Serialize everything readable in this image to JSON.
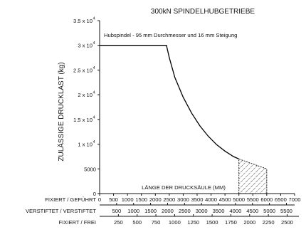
{
  "chart_data": {
    "type": "line",
    "title": "300kN SPINDELHUBGETRIEBE",
    "ylabel": "ZULÄSSIGE DRUCKLAST (kg)",
    "xlabel": "LÄNGE DER DRUCKSÄULE (MM)",
    "annotation": "Hubspindel - 95 mm Durchmesser und 16 mm Steigung",
    "ylim": [
      0,
      35000
    ],
    "xlim": [
      0,
      7000
    ],
    "y_ticks": [
      {
        "value": 0,
        "label": "0"
      },
      {
        "value": 5000,
        "label": "5000"
      },
      {
        "value": 10000,
        "label": "1 x 10",
        "exp": "4"
      },
      {
        "value": 15000,
        "label": "1.5 x 10",
        "exp": "4"
      },
      {
        "value": 20000,
        "label": "2 x 10",
        "exp": "4"
      },
      {
        "value": 25000,
        "label": "2.5 x 10",
        "exp": "4"
      },
      {
        "value": 30000,
        "label": "3 x 10",
        "exp": "4"
      },
      {
        "value": 35000,
        "label": "3.5 x 10",
        "exp": "4"
      }
    ],
    "x_scales": [
      {
        "name": "FIXIERT / GEFÜHRT",
        "ticks": [
          0,
          500,
          1000,
          1500,
          2000,
          2500,
          3000,
          3500,
          4000,
          4500,
          5000,
          5500,
          6000,
          6500,
          7000
        ],
        "labels": [
          "0",
          "500",
          "1000",
          "1500",
          "2000",
          "2500",
          "3000",
          "3500",
          "4000",
          "4500",
          "5000",
          "5500",
          "6000",
          "6500",
          "7000"
        ]
      },
      {
        "name": "VERSTIFTET / VERSTIFTET",
        "ticks": [
          500,
          1000,
          1500,
          2000,
          2500,
          3000,
          3500,
          4000,
          4500,
          5000,
          5500
        ],
        "labels": [
          "500",
          "1000",
          "1500",
          "2000",
          "2500",
          "3000",
          "3500",
          "4000",
          "4500",
          "5000",
          "5500"
        ]
      },
      {
        "name": "FIXIERT / FREI",
        "ticks": [
          250,
          500,
          750,
          1000,
          1250,
          1500,
          1750,
          2000,
          2250,
          2500
        ],
        "labels": [
          "250",
          "500",
          "750",
          "1000",
          "1250",
          "1500",
          "1750",
          "2000",
          "2250",
          "2500"
        ]
      }
    ],
    "series": [
      {
        "x": [
          0,
          2400,
          2500,
          2700,
          3000,
          3300,
          3600,
          3900,
          4200,
          4500,
          4800,
          5000
        ],
        "y": [
          30000,
          30000,
          27500,
          23500,
          19500,
          16300,
          13700,
          11600,
          9900,
          8600,
          7500,
          7000
        ]
      }
    ],
    "hatched_region": {
      "x": [
        5000,
        6000
      ],
      "y_top": [
        7000,
        5000
      ],
      "y_bottom": 0
    },
    "grid": false
  }
}
